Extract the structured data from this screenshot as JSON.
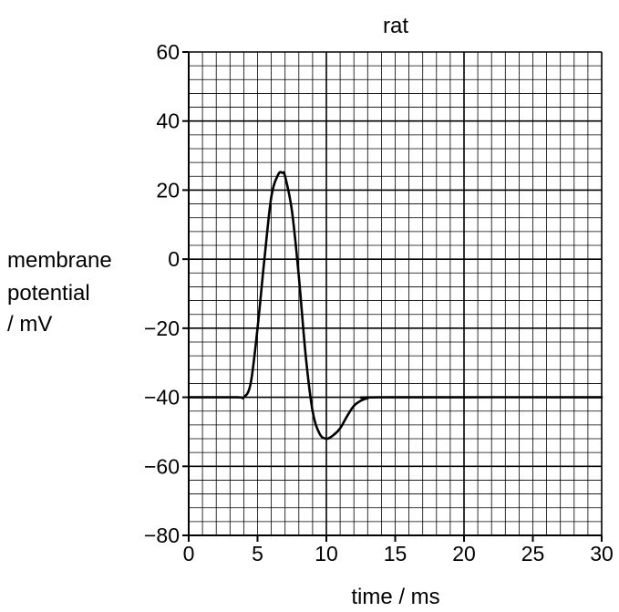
{
  "chart_data": {
    "type": "line",
    "title": "rat",
    "xlabel": "time / ms",
    "ylabel": [
      "membrane",
      "potential",
      "/ mV"
    ],
    "xlim": [
      0,
      30
    ],
    "ylim": [
      -80,
      60
    ],
    "xticks": [
      0,
      5,
      10,
      15,
      20,
      25,
      30
    ],
    "yticks": [
      60,
      40,
      20,
      0,
      -20,
      -40,
      -60,
      -80
    ],
    "xtick_labels": [
      "0",
      "5",
      "10",
      "15",
      "20",
      "25",
      "30"
    ],
    "ytick_labels": [
      "60",
      "40",
      "20",
      "0",
      "−20",
      "−40",
      "−60",
      "−80"
    ],
    "grid": {
      "minor_x_step": 1,
      "minor_y_step": 4,
      "major_x_step": 10,
      "major_y_step": 20
    },
    "line_color": "#000000",
    "series": [
      {
        "x": [
          0,
          3.5,
          4.0,
          4.5,
          5.0,
          5.5,
          6.0,
          6.5,
          6.8,
          7.0,
          7.5,
          8.0,
          8.5,
          9.0,
          9.5,
          10.0,
          10.5,
          11.0,
          11.5,
          12.0,
          12.5,
          13.0,
          14.0,
          30
        ],
        "y": [
          -40,
          -40,
          -40,
          -36,
          -20,
          0,
          18,
          24.5,
          25,
          24,
          14,
          -5,
          -28,
          -44,
          -50.5,
          -52,
          -51,
          -49,
          -45.5,
          -42.5,
          -41,
          -40.3,
          -40,
          -40
        ]
      }
    ]
  }
}
